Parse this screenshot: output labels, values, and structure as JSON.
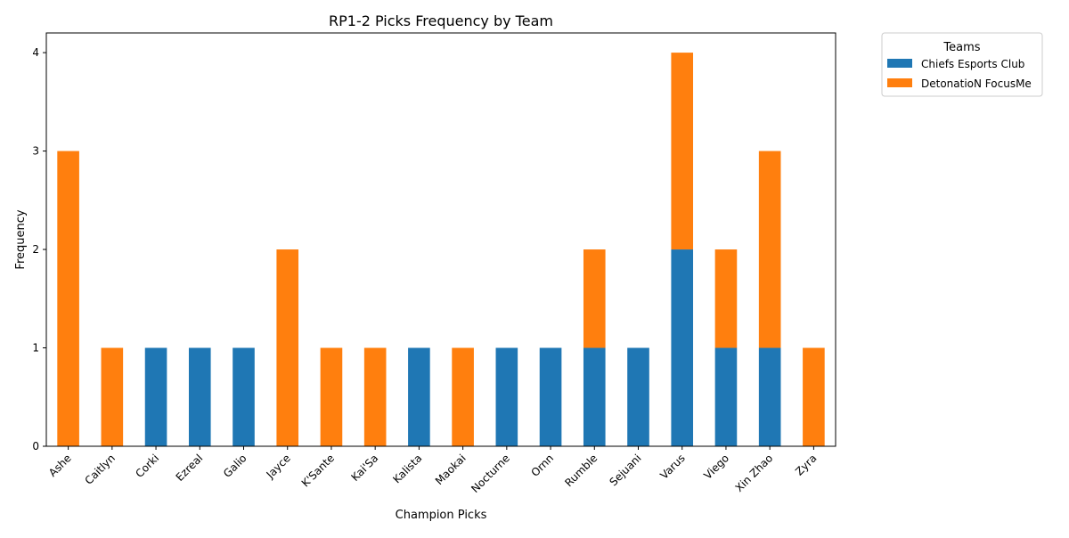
{
  "chart_data": {
    "type": "bar",
    "stacked": true,
    "title": "RP1-2 Picks Frequency by Team",
    "xlabel": "Champion Picks",
    "ylabel": "Frequency",
    "ylim": [
      0,
      4.2
    ],
    "yticks": [
      0,
      1,
      2,
      3,
      4
    ],
    "categories": [
      "Ashe",
      "Caitlyn",
      "Corki",
      "Ezreal",
      "Galio",
      "Jayce",
      "K'Sante",
      "Kai'Sa",
      "Kalista",
      "Maokai",
      "Nocturne",
      "Ornn",
      "Rumble",
      "Sejuani",
      "Varus",
      "Viego",
      "Xin Zhao",
      "Zyra"
    ],
    "series": [
      {
        "name": "Chiefs Esports Club",
        "color": "#1f77b4",
        "values": [
          0,
          0,
          1,
          1,
          1,
          0,
          0,
          0,
          1,
          0,
          1,
          1,
          1,
          1,
          2,
          1,
          1,
          0
        ]
      },
      {
        "name": "DetonatioN FocusMe",
        "color": "#ff7f0e",
        "values": [
          3,
          1,
          0,
          0,
          0,
          2,
          1,
          1,
          0,
          1,
          0,
          0,
          1,
          0,
          2,
          1,
          2,
          1
        ]
      }
    ],
    "legend": {
      "title": "Teams",
      "position": "outside-upper-right"
    },
    "grid": false
  }
}
